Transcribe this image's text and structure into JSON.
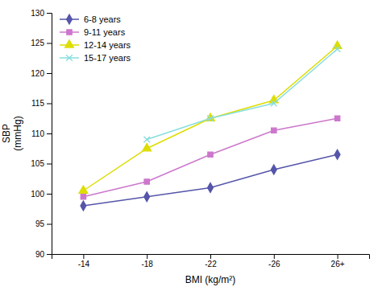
{
  "chart_data": {
    "type": "line",
    "categories": [
      "-14",
      "-18",
      "-22",
      "-26",
      "26+"
    ],
    "series": [
      {
        "name": "6-8 years",
        "color": "#5555aa",
        "marker": "diamond",
        "line_style": "solid",
        "values": [
          98,
          99.5,
          101,
          104,
          106.5
        ]
      },
      {
        "name": "9-11 years",
        "color": "#cc77cc",
        "marker": "square",
        "line_style": "solid",
        "values": [
          99.5,
          102,
          106.5,
          110.5,
          112.5
        ]
      },
      {
        "name": "12-14 years",
        "color": "#dddd00",
        "marker": "triangle",
        "line_style": "solid",
        "values": [
          100.5,
          107.5,
          112.5,
          115.5,
          124.5
        ]
      },
      {
        "name": "15-17 years",
        "color": "#88dddd",
        "marker": "x",
        "line_style": "solid",
        "values": [
          null,
          109,
          112.5,
          115,
          124
        ]
      }
    ],
    "x_label": "BMI (kg/m²)",
    "y_label": "SBP\n(mmHg)",
    "ylim": [
      90,
      130
    ],
    "yticks": [
      90,
      95,
      100,
      105,
      110,
      115,
      120,
      125,
      130
    ],
    "grid": false,
    "legend": "upper left"
  }
}
